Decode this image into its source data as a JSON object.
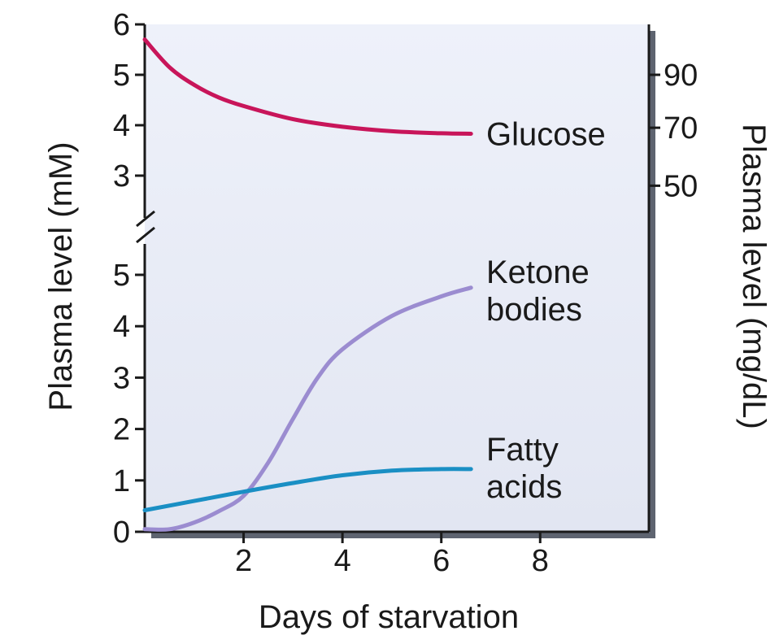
{
  "chart_data": {
    "type": "line",
    "xlabel": "Days of starvation",
    "ylabel_left": "Plasma level (mM)",
    "ylabel_right": "Plasma level (mg/dL)",
    "xlim": [
      0,
      10.2
    ],
    "x_ticks": [
      "2",
      "4",
      "6",
      "8"
    ],
    "x_tick_values": [
      2,
      4,
      6,
      8
    ],
    "axis_break": "y-axis break between upper (glucose) and lower (ketone bodies, fatty acids) panels",
    "upper_panel": {
      "ylim": [
        2.5,
        6
      ],
      "y_ticks_left": [
        "3",
        "4",
        "5",
        "6"
      ],
      "y_tick_values_left": [
        3,
        4,
        5,
        6
      ],
      "y_ticks_right": [
        "50",
        "70",
        "90"
      ],
      "y_tick_values_right_mM": [
        2.8,
        3.95,
        5.0
      ]
    },
    "lower_panel": {
      "ylim": [
        0,
        5.8
      ],
      "y_ticks_left": [
        "0",
        "1",
        "2",
        "3",
        "4",
        "5"
      ],
      "y_tick_values_left": [
        0,
        1,
        2,
        3,
        4,
        5
      ]
    },
    "series": [
      {
        "name": "Glucose",
        "panel": "upper",
        "color": "#c8155a",
        "x": [
          0,
          0.5,
          1,
          1.5,
          2,
          3,
          4,
          5,
          6,
          6.6
        ],
        "y": [
          5.7,
          5.15,
          4.8,
          4.55,
          4.38,
          4.12,
          3.97,
          3.88,
          3.84,
          3.83
        ]
      },
      {
        "name": "Ketone bodies",
        "label_lines": [
          "Ketone",
          "bodies"
        ],
        "panel": "lower",
        "color": "#9b8cd0",
        "x": [
          0,
          0.5,
          1,
          1.5,
          2,
          2.5,
          3,
          3.5,
          4,
          5,
          6,
          6.6
        ],
        "y": [
          0.05,
          0.05,
          0.18,
          0.4,
          0.7,
          1.35,
          2.2,
          3.0,
          3.55,
          4.2,
          4.58,
          4.75
        ]
      },
      {
        "name": "Fatty acids",
        "label_lines": [
          "Fatty",
          "acids"
        ],
        "panel": "lower",
        "color": "#1a8fc4",
        "x": [
          0,
          1,
          2,
          3,
          4,
          5,
          6,
          6.6
        ],
        "y": [
          0.42,
          0.6,
          0.78,
          0.95,
          1.1,
          1.19,
          1.22,
          1.22
        ]
      }
    ]
  }
}
